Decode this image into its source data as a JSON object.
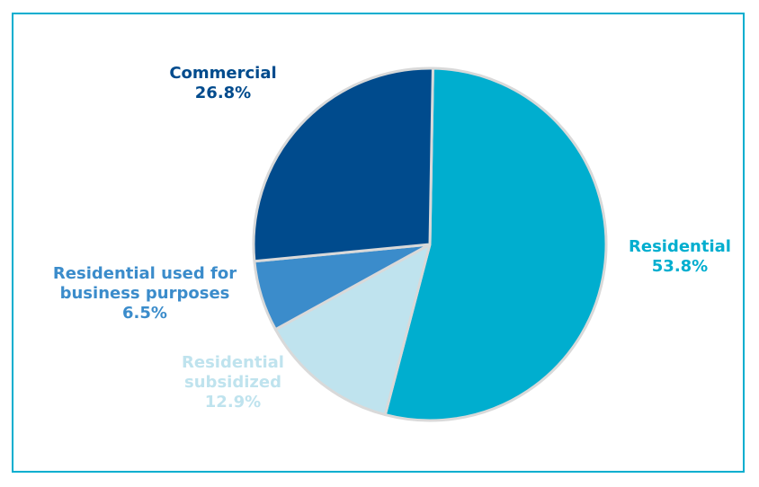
{
  "chart_data": {
    "type": "pie",
    "title": "",
    "slices": [
      {
        "label_lines": [
          "Residential"
        ],
        "value_text": "53.8%",
        "value": 53.8,
        "color": "#00aecf"
      },
      {
        "label_lines": [
          "Residential",
          "subsidized"
        ],
        "value_text": "12.9%",
        "value": 12.9,
        "color": "#bfe3ee"
      },
      {
        "label_lines": [
          "Residential used for",
          "business purposes"
        ],
        "value_text": "6.5%",
        "value": 6.5,
        "color": "#3b8ccb"
      },
      {
        "label_lines": [
          "Commercial"
        ],
        "value_text": "26.8%",
        "value": 26.8,
        "color": "#004b8d"
      }
    ]
  }
}
